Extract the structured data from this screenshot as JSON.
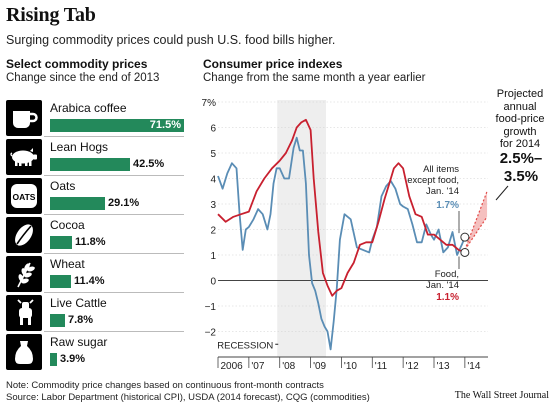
{
  "header": {
    "title": "Rising Tab",
    "subtitle": "Surging commodity prices could push U.S. food bills higher."
  },
  "left_panel": {
    "title": "Select commodity prices",
    "subtitle": "Change since the end of 2013",
    "items": [
      {
        "label": "Arabica coffee",
        "value": 71.5,
        "value_label": "71.5%",
        "icon": "coffee-mug-icon"
      },
      {
        "label": "Lean Hogs",
        "value": 42.5,
        "value_label": "42.5%",
        "icon": "hog-icon"
      },
      {
        "label": "Oats",
        "value": 29.1,
        "value_label": "29.1%",
        "icon": "oats-box-icon"
      },
      {
        "label": "Cocoa",
        "value": 11.8,
        "value_label": "11.8%",
        "icon": "cocoa-bean-icon"
      },
      {
        "label": "Wheat",
        "value": 11.4,
        "value_label": "11.4%",
        "icon": "wheat-icon"
      },
      {
        "label": "Live Cattle",
        "value": 7.8,
        "value_label": "7.8%",
        "icon": "cow-icon"
      },
      {
        "label": "Raw sugar",
        "value": 3.9,
        "value_label": "3.9%",
        "icon": "sugar-bag-icon"
      }
    ],
    "bar_color": "#23895b"
  },
  "right_panel": {
    "title": "Consumer price indexes",
    "subtitle": "Change from the same month a year earlier"
  },
  "chart_data": {
    "type": "line",
    "x_ticks": [
      "2006",
      "'07",
      "'08",
      "'09",
      "'10",
      "'11",
      "'12",
      "'13",
      "'14"
    ],
    "x_range": [
      2006,
      2014.75
    ],
    "ylim": [
      -3,
      7
    ],
    "y_ticks": [
      -3,
      -2,
      -1,
      0,
      1,
      2,
      3,
      4,
      5,
      6,
      7
    ],
    "y_tick_labels": [
      "",
      "−2",
      "−1",
      "0",
      "1",
      "2",
      "3",
      "4",
      "5",
      "6",
      "7%"
    ],
    "grid": true,
    "recession": {
      "start": 2007.92,
      "end": 2009.5,
      "label": "RECESSION"
    },
    "series": [
      {
        "name": "All items except food",
        "color": "#5a8db5",
        "x": [
          2006.0,
          2006.15,
          2006.3,
          2006.45,
          2006.6,
          2006.7,
          2006.8,
          2006.9,
          2007.0,
          2007.15,
          2007.3,
          2007.45,
          2007.6,
          2007.7,
          2007.8,
          2007.9,
          2008.0,
          2008.15,
          2008.3,
          2008.45,
          2008.55,
          2008.65,
          2008.75,
          2008.85,
          2008.95,
          2009.05,
          2009.15,
          2009.25,
          2009.35,
          2009.45,
          2009.55,
          2009.65,
          2009.75,
          2009.85,
          2009.95,
          2010.1,
          2010.3,
          2010.5,
          2010.7,
          2010.9,
          2011.0,
          2011.15,
          2011.3,
          2011.45,
          2011.6,
          2011.75,
          2011.9,
          2012.0,
          2012.15,
          2012.3,
          2012.45,
          2012.6,
          2012.75,
          2012.9,
          2013.0,
          2013.15,
          2013.3,
          2013.45,
          2013.6,
          2013.75,
          2013.9,
          2014.0
        ],
        "y": [
          4.1,
          3.6,
          4.2,
          4.6,
          4.4,
          2.6,
          1.2,
          2.0,
          2.1,
          2.4,
          2.8,
          2.6,
          2.0,
          2.6,
          3.8,
          4.4,
          4.4,
          4.0,
          4.0,
          5.2,
          5.6,
          5.1,
          5.1,
          3.8,
          1.0,
          -0.1,
          -0.4,
          -0.9,
          -1.5,
          -1.8,
          -2.0,
          -2.7,
          -1.6,
          -0.3,
          1.6,
          2.6,
          2.4,
          1.3,
          1.2,
          1.1,
          1.6,
          2.1,
          3.3,
          3.7,
          3.9,
          3.6,
          3.0,
          2.9,
          2.8,
          2.2,
          1.5,
          1.5,
          2.2,
          1.8,
          1.6,
          2.0,
          1.1,
          1.3,
          1.9,
          1.0,
          1.4,
          1.7
        ]
      },
      {
        "name": "Food",
        "color": "#c8202f",
        "x": [
          2006.0,
          2006.25,
          2006.5,
          2006.75,
          2007.0,
          2007.25,
          2007.5,
          2007.75,
          2008.0,
          2008.2,
          2008.4,
          2008.55,
          2008.7,
          2008.85,
          2009.0,
          2009.1,
          2009.25,
          2009.4,
          2009.55,
          2009.7,
          2009.85,
          2010.0,
          2010.2,
          2010.4,
          2010.6,
          2010.8,
          2011.0,
          2011.2,
          2011.4,
          2011.55,
          2011.7,
          2011.85,
          2012.0,
          2012.2,
          2012.4,
          2012.6,
          2012.8,
          2013.0,
          2013.2,
          2013.4,
          2013.6,
          2013.8,
          2014.0
        ],
        "y": [
          2.6,
          2.3,
          2.5,
          2.6,
          2.7,
          3.5,
          4.0,
          4.4,
          4.7,
          5.0,
          5.5,
          6.0,
          6.2,
          6.3,
          5.9,
          4.0,
          1.9,
          0.3,
          -0.2,
          -0.6,
          -0.4,
          -0.3,
          0.3,
          0.7,
          1.4,
          1.5,
          1.5,
          2.3,
          3.2,
          3.8,
          4.4,
          4.6,
          4.4,
          3.3,
          2.6,
          2.5,
          1.8,
          1.8,
          1.6,
          1.4,
          1.4,
          1.2,
          1.1
        ]
      }
    ],
    "annotations": {
      "all_items_label": "All items except food, Jan. '14",
      "all_items_label_lines": [
        "All items",
        "except food,",
        "Jan. '14"
      ],
      "all_items_value": "1.7%",
      "food_label": "Food, Jan. '14",
      "food_label_lines": [
        "Food,",
        "Jan. '14"
      ],
      "food_value": "1.1%"
    },
    "projection": {
      "text": "Projected annual food-price growth for 2014",
      "text_lines": [
        "Projected",
        "annual",
        "food-price",
        "growth",
        "for 2014"
      ],
      "range_label": "2.5%– 3.5%",
      "range_lines": [
        "2.5%–",
        "3.5%"
      ],
      "low": 2.5,
      "high": 3.5,
      "color": "#e24a48"
    }
  },
  "footer": {
    "note": "Note: Commodity price changes based on continuous front-month contracts",
    "sources": "Source: Labor Department (historical CPI), USDA (2014 forecast), CQG (commodities)",
    "credit": "The Wall Street Journal"
  }
}
